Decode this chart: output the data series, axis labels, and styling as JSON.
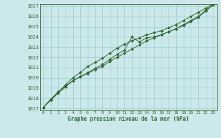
{
  "title": "Graphe pression niveau de la mer (hPa)",
  "bg_color": "#cce8ea",
  "grid_color": "#99cccc",
  "line_color": "#336633",
  "text_color": "#336633",
  "xlim": [
    -0.5,
    23.5
  ],
  "ylim": [
    1016.8,
    1027.2
  ],
  "xticks": [
    0,
    1,
    2,
    3,
    4,
    5,
    6,
    7,
    8,
    9,
    10,
    11,
    12,
    13,
    14,
    15,
    16,
    17,
    18,
    19,
    20,
    21,
    22,
    23
  ],
  "yticks": [
    1017,
    1018,
    1019,
    1020,
    1021,
    1022,
    1023,
    1024,
    1025,
    1026,
    1027
  ],
  "series1": [
    1017.1,
    1017.9,
    1018.6,
    1019.2,
    1019.7,
    1020.1,
    1020.4,
    1020.8,
    1021.1,
    1021.6,
    1022.0,
    1022.4,
    1022.8,
    1023.2,
    1023.6,
    1023.9,
    1024.2,
    1024.5,
    1024.8,
    1025.2,
    1025.6,
    1026.0,
    1026.6,
    1027.1
  ],
  "series2": [
    1017.1,
    1017.8,
    1018.5,
    1019.1,
    1019.7,
    1020.1,
    1020.5,
    1020.9,
    1021.3,
    1021.8,
    1022.3,
    1022.7,
    1024.0,
    1023.5,
    1023.9,
    1024.0,
    1024.2,
    1024.5,
    1024.8,
    1025.1,
    1025.5,
    1025.9,
    1026.5,
    1027.1
  ],
  "series3": [
    1017.1,
    1017.9,
    1018.6,
    1019.3,
    1020.0,
    1020.5,
    1021.1,
    1021.5,
    1021.9,
    1022.4,
    1022.9,
    1023.3,
    1023.6,
    1023.9,
    1024.2,
    1024.4,
    1024.6,
    1024.9,
    1025.2,
    1025.6,
    1026.0,
    1026.4,
    1026.8,
    1027.2
  ]
}
